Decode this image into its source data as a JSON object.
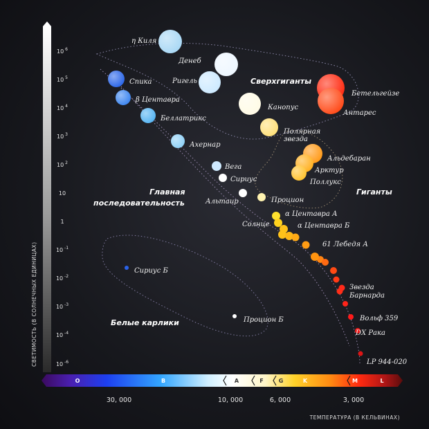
{
  "axis": {
    "y_title": "СВЕТИМОСТЬ (В СОЛНЕЧНЫХ ЕДИНИЦАХ)",
    "x_title": "ТЕМПЕРАТУРА (В КЕЛЬВИНАХ)",
    "y_ticks": [
      {
        "base": "10",
        "exp": "6"
      },
      {
        "base": "10",
        "exp": "5"
      },
      {
        "base": "10",
        "exp": "4"
      },
      {
        "base": "10",
        "exp": "3"
      },
      {
        "base": "10",
        "exp": "2"
      },
      {
        "base": "10",
        "exp": ""
      },
      {
        "base": "1",
        "exp": ""
      },
      {
        "base": "10",
        "exp": "-1"
      },
      {
        "base": "10",
        "exp": "-2"
      },
      {
        "base": "10",
        "exp": "-3"
      },
      {
        "base": "10",
        "exp": "-4"
      },
      {
        "base": "10",
        "exp": "-6"
      }
    ],
    "x_ticks": [
      "30, 000",
      "10, 000",
      "6, 000",
      "3, 000"
    ],
    "spectral_classes": [
      "O",
      "B",
      "A",
      "F",
      "G",
      "K",
      "M",
      "L"
    ]
  },
  "regions": {
    "supergiants": "Сверхгиганты",
    "giants": "Гиганты",
    "main_sequence_line1": "Главная",
    "main_sequence_line2": "последовательность",
    "white_dwarfs": "Белые карлики"
  },
  "stars": [
    {
      "id": "eta-carinae",
      "label": "η Киля",
      "color": "#a9d8f5"
    },
    {
      "id": "deneb",
      "label": "Денеб",
      "color": "#eef7ff"
    },
    {
      "id": "rigel",
      "label": "Ригель",
      "color": "#cdeaff"
    },
    {
      "id": "spica",
      "label": "Спика",
      "color": "#2b66e8"
    },
    {
      "id": "beta-centauri",
      "label": "β Центавра",
      "color": "#3d86f0"
    },
    {
      "id": "bellatrix",
      "label": "Беллатрикс",
      "color": "#56b4f2"
    },
    {
      "id": "achernar",
      "label": "Ахернар",
      "color": "#8fd1f7"
    },
    {
      "id": "vega",
      "label": "Вега",
      "color": "#cfeaff"
    },
    {
      "id": "sirius",
      "label": "Сириус",
      "color": "#ffffff"
    },
    {
      "id": "altair",
      "label": "Альтаир",
      "color": "#ffffff"
    },
    {
      "id": "procyon",
      "label": "Процион",
      "color": "#fff3b0"
    },
    {
      "id": "canopus",
      "label": "Канопус",
      "color": "#fffbe6"
    },
    {
      "id": "polaris",
      "label": "Полярная звезда",
      "label_line1": "Полярная",
      "label_line2": "звезда",
      "color": "#ffe07a"
    },
    {
      "id": "betelgeuse",
      "label": "Бетельгейзе",
      "color": "#ff2a10"
    },
    {
      "id": "antares",
      "label": "Антарес",
      "color": "#ff4a18"
    },
    {
      "id": "aldebaran",
      "label": "Альдебаран",
      "color": "#ff9a18"
    },
    {
      "id": "arcturus",
      "label": "Арктур",
      "color": "#ffb020"
    },
    {
      "id": "pollux",
      "label": "Поллукс",
      "color": "#ffc22e"
    },
    {
      "id": "alpha-cen-a",
      "label": "α Центавра А",
      "color": "#ffe12e"
    },
    {
      "id": "sun",
      "label": "Солнце",
      "color": "#ffd21e"
    },
    {
      "id": "alpha-cen-b",
      "label": "α Центавра Б",
      "color": "#ffc21a"
    },
    {
      "id": "61-cygni-a",
      "label": "61 Лебедя А",
      "color": "#ff9410"
    },
    {
      "id": "barnard",
      "label": "Звезда Барнарда",
      "label_line1": "Звезда",
      "label_line2": "Барнарда",
      "color": "#ff2a1a"
    },
    {
      "id": "wolf-359",
      "label": "Вольф 359",
      "color": "#ff1a1a"
    },
    {
      "id": "dx-cancri",
      "label": "DX Рака",
      "color": "#ee1a1a"
    },
    {
      "id": "lp-944-020",
      "label": "LP 944-020",
      "color": "#dd1515"
    },
    {
      "id": "sirius-b",
      "label": "Сириус Б",
      "color": "#2a62e8"
    },
    {
      "id": "procyon-b",
      "label": "Процион Б",
      "color": "#ffffff"
    }
  ]
}
